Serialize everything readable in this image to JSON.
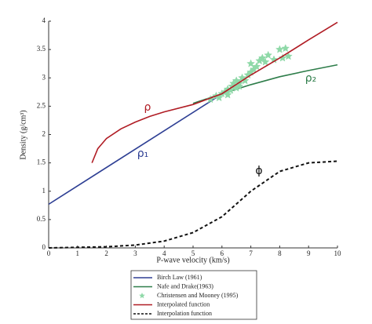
{
  "chart_data": {
    "type": "line",
    "xlabel": "P-wave velocity (km/s)",
    "ylabel": "Density (g/cm³)",
    "xlim": [
      0,
      10
    ],
    "ylim": [
      0,
      4
    ],
    "xticks": [
      0,
      1,
      2,
      3,
      4,
      5,
      6,
      7,
      8,
      9,
      10
    ],
    "yticks": [
      0,
      0.5,
      1,
      1.5,
      2,
      2.5,
      3,
      3.5,
      4
    ],
    "annotations": [
      "ρ",
      "ρ₁",
      "ρ₂",
      "ϕ"
    ],
    "series": [
      {
        "name": "Birch Law (1961)",
        "color": "#2e3f94",
        "style": "line",
        "x": [
          0,
          5.8
        ],
        "values": [
          0.77,
          2.65
        ]
      },
      {
        "name": "Nafe and Drake(1963)",
        "color": "#2e7d4a",
        "style": "line",
        "x": [
          5,
          6,
          7,
          8,
          9,
          10
        ],
        "values": [
          2.55,
          2.72,
          2.88,
          3.02,
          3.13,
          3.23
        ]
      },
      {
        "name": "Christensen and Mooney (1995)",
        "color": "#8fd9a8",
        "style": "star",
        "x": [
          5.6,
          5.8,
          5.9,
          6.0,
          6.1,
          6.2,
          6.3,
          6.35,
          6.4,
          6.5,
          6.5,
          6.6,
          6.7,
          6.8,
          6.9,
          7.0,
          7.0,
          7.1,
          7.2,
          7.3,
          7.4,
          7.5,
          7.6,
          7.8,
          8.0,
          8.1,
          8.2,
          8.3,
          6.6,
          6.2
        ],
        "values": [
          2.62,
          2.68,
          2.65,
          2.72,
          2.75,
          2.8,
          2.78,
          2.85,
          2.9,
          2.82,
          2.95,
          2.9,
          3.0,
          2.95,
          3.05,
          3.1,
          3.25,
          3.15,
          3.2,
          3.3,
          3.35,
          3.28,
          3.4,
          3.32,
          3.5,
          3.35,
          3.52,
          3.38,
          2.85,
          2.7
        ]
      },
      {
        "name": "Interpolated function",
        "color": "#b01c24",
        "style": "line",
        "x": [
          1.5,
          1.7,
          2,
          2.5,
          3,
          3.5,
          4,
          5,
          6,
          7,
          8,
          9,
          10
        ],
        "values": [
          1.5,
          1.75,
          1.93,
          2.1,
          2.22,
          2.32,
          2.4,
          2.53,
          2.72,
          3.05,
          3.35,
          3.67,
          3.98
        ]
      },
      {
        "name": "Interpolation function",
        "color": "#111111",
        "style": "dashed",
        "x": [
          0,
          1,
          2,
          3,
          4,
          5,
          6,
          7,
          8,
          9,
          10
        ],
        "values": [
          0,
          0.01,
          0.02,
          0.05,
          0.12,
          0.27,
          0.55,
          1.0,
          1.35,
          1.5,
          1.53
        ]
      }
    ]
  }
}
